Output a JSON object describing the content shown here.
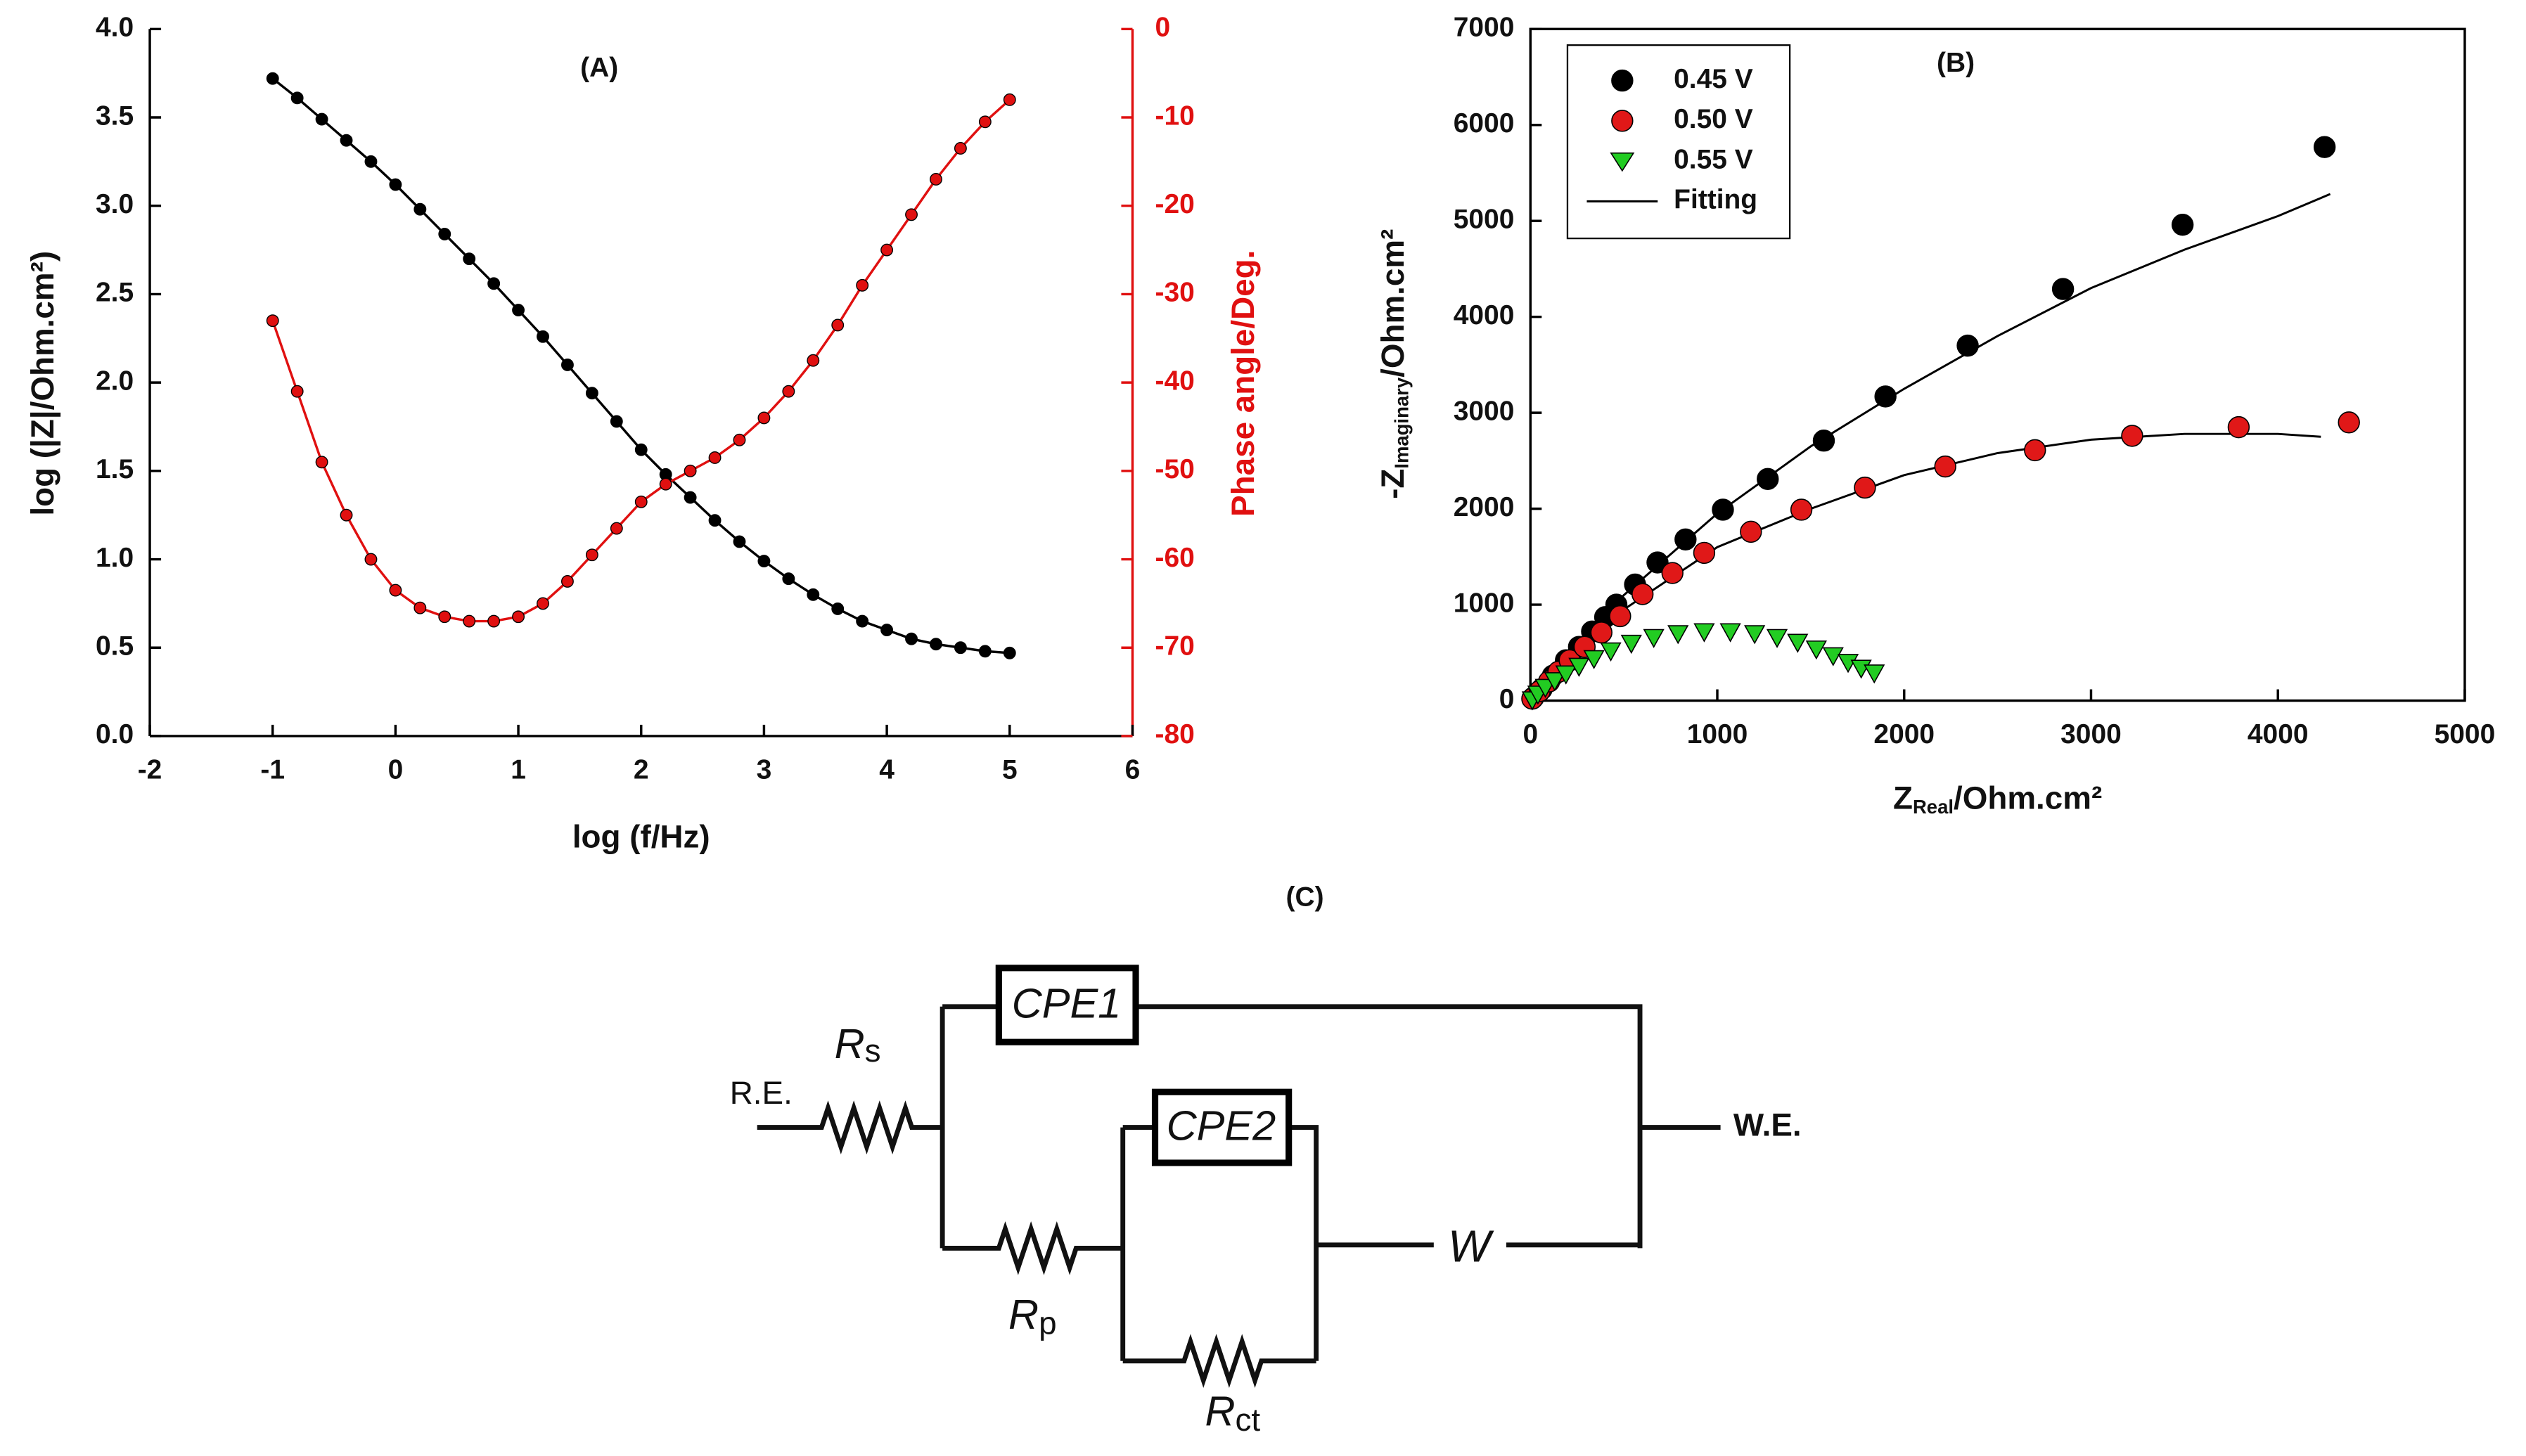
{
  "chart_data": [
    {
      "type": "line",
      "title": "(A)",
      "xlabel": "log (f/Hz)",
      "ylabel": "log (|Z|/Ohm.cm²)",
      "y2label": "Phase angle/Deg.",
      "xlim": [
        -2,
        6
      ],
      "xticks": [
        -2,
        -1,
        0,
        1,
        2,
        3,
        4,
        5,
        6
      ],
      "ylim": [
        0,
        4
      ],
      "yticks": [
        {
          "value": 0,
          "label": "0.0"
        },
        {
          "value": 0.5,
          "label": "0.5"
        },
        {
          "value": 1,
          "label": "1.0"
        },
        {
          "value": 1.5,
          "label": "1.5"
        },
        {
          "value": 2,
          "label": "2.0"
        },
        {
          "value": 2.5,
          "label": "2.5"
        },
        {
          "value": 3,
          "label": "3.0"
        },
        {
          "value": 3.5,
          "label": "3.5"
        },
        {
          "value": 4,
          "label": "4.0"
        }
      ],
      "y2lim": [
        -80,
        0
      ],
      "y2ticks": [
        -80,
        -70,
        -60,
        -50,
        -40,
        -30,
        -20,
        -10,
        0
      ],
      "x": [
        -1,
        -0.8,
        -0.6,
        -0.4,
        -0.2,
        0,
        0.2,
        0.4,
        0.6,
        0.8,
        1,
        1.2,
        1.4,
        1.6,
        1.8,
        2,
        2.2,
        2.4,
        2.6,
        2.8,
        3,
        3.2,
        3.4,
        3.6,
        3.8,
        4,
        4.2,
        4.4,
        4.6,
        4.8,
        5
      ],
      "series": [
        {
          "color": "#000000",
          "axis": "y",
          "values": [
            3.72,
            3.61,
            3.49,
            3.37,
            3.25,
            3.12,
            2.98,
            2.84,
            2.7,
            2.56,
            2.41,
            2.26,
            2.1,
            1.94,
            1.78,
            1.62,
            1.48,
            1.35,
            1.22,
            1.1,
            0.99,
            0.89,
            0.8,
            0.72,
            0.65,
            0.6,
            0.55,
            0.52,
            0.5,
            0.48,
            0.47
          ]
        },
        {
          "color": "#e01010",
          "axis": "y2",
          "values": [
            -33,
            -41,
            -49,
            -55,
            -60,
            -63.5,
            -65.5,
            -66.5,
            -67,
            -67,
            -66.5,
            -65,
            -62.5,
            -59.5,
            -56.5,
            -53.5,
            -51.5,
            -50,
            -48.5,
            -46.5,
            -44,
            -41,
            -37.5,
            -33.5,
            -29,
            -25,
            -21,
            -17,
            -13.5,
            -10.5,
            -8
          ]
        }
      ]
    },
    {
      "type": "scatter",
      "title": "(B)",
      "legend": "upper left",
      "xlabel": {
        "main": "Z",
        "sub": "Real",
        "rest": "/Ohm.cm²"
      },
      "ylabel": {
        "main": "-Z",
        "sub": "Imaginary",
        "rest": "/Ohm.cm²"
      },
      "xlim": [
        0,
        5000
      ],
      "xticks": [
        0,
        1000,
        2000,
        3000,
        4000,
        5000
      ],
      "ylim": [
        0,
        7000
      ],
      "yticks": [
        0,
        1000,
        2000,
        3000,
        4000,
        5000,
        6000,
        7000
      ],
      "series": [
        {
          "name": "0.45 V",
          "color": "#000000",
          "marker": "circle",
          "x": [
            15,
            60,
            120,
            190,
            260,
            330,
            400,
            460,
            560,
            680,
            830,
            1030,
            1270,
            1570,
            1900,
            2340,
            2850,
            3490,
            4250
          ],
          "values": [
            30,
            120,
            260,
            420,
            560,
            720,
            870,
            1000,
            1210,
            1440,
            1680,
            1990,
            2310,
            2710,
            3170,
            3700,
            4290,
            4960,
            5770
          ]
        },
        {
          "name": "0.50 V",
          "color": "#e01818",
          "marker": "circle",
          "x": [
            10,
            50,
            100,
            150,
            210,
            290,
            380,
            480,
            600,
            760,
            930,
            1180,
            1450,
            1790,
            2220,
            2700,
            3220,
            3790,
            4380
          ],
          "values": [
            20,
            100,
            200,
            300,
            420,
            560,
            710,
            880,
            1110,
            1330,
            1540,
            1760,
            1990,
            2220,
            2440,
            2610,
            2760,
            2850,
            2900
          ]
        },
        {
          "name": "0.55 V",
          "color": "#22cc22",
          "marker": "triangle",
          "x": [
            10,
            40,
            80,
            130,
            190,
            260,
            340,
            430,
            540,
            660,
            790,
            930,
            1070,
            1200,
            1320,
            1430,
            1530,
            1620,
            1700,
            1770,
            1840
          ],
          "values": [
            10,
            70,
            140,
            210,
            280,
            360,
            440,
            520,
            600,
            660,
            700,
            720,
            720,
            700,
            660,
            610,
            540,
            470,
            400,
            340,
            290
          ]
        }
      ],
      "fit_name": "Fitting",
      "fits": [
        {
          "x": [
            0,
            500,
            1000,
            1500,
            2000,
            2500,
            3000,
            3500,
            4000,
            4280
          ],
          "values": [
            0,
            1100,
            1950,
            2650,
            3250,
            3800,
            4300,
            4700,
            5050,
            5280
          ]
        },
        {
          "x": [
            0,
            500,
            1000,
            1500,
            2000,
            2500,
            3000,
            3500,
            4000,
            4230
          ],
          "values": [
            0,
            950,
            1600,
            2000,
            2350,
            2580,
            2720,
            2780,
            2780,
            2750
          ]
        }
      ]
    }
  ],
  "circuit": {
    "title": "(C)",
    "input": "R.E.",
    "output": "W.E.",
    "cpe1": "CPE1",
    "cpe2": "CPE2",
    "warburg": "W",
    "rs": {
      "main": "R",
      "sub": "s"
    },
    "rp": {
      "main": "R",
      "sub": "p"
    },
    "rct": {
      "main": "R",
      "sub": "ct"
    }
  }
}
